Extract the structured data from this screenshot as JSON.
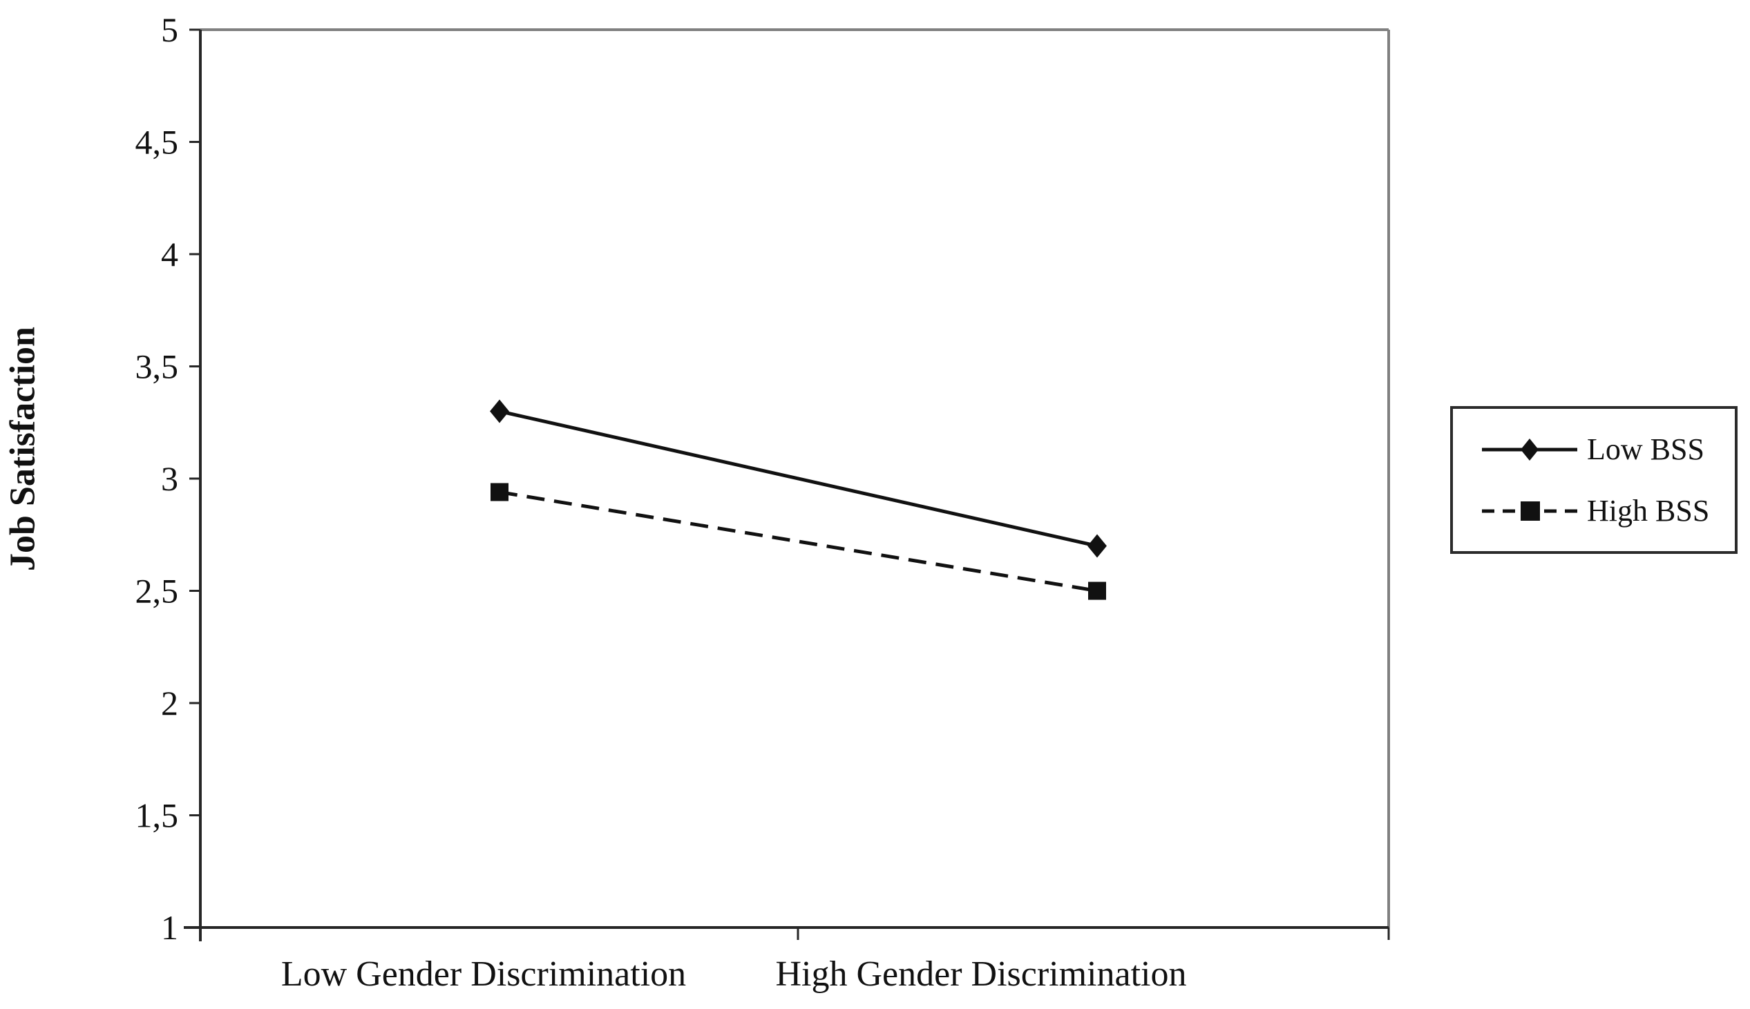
{
  "chart_data": {
    "type": "line",
    "title": "",
    "xlabel": "",
    "ylabel": "Job Satisfaction",
    "categories": [
      "Low Gender Discrimination",
      "High Gender Discrimination"
    ],
    "series": [
      {
        "name": "Low BSS",
        "values": [
          3.3,
          2.7
        ],
        "line_style": "solid",
        "marker": "diamond"
      },
      {
        "name": "High BSS",
        "values": [
          2.94,
          2.5
        ],
        "line_style": "dashed",
        "marker": "square"
      }
    ],
    "ylim": [
      1,
      5
    ],
    "y_tick_step": 0.5,
    "y_ticks": [
      {
        "value": 5,
        "label": "5"
      },
      {
        "value": 4.5,
        "label": "4,5"
      },
      {
        "value": 4,
        "label": "4"
      },
      {
        "value": 3.5,
        "label": "3,5"
      },
      {
        "value": 3,
        "label": "3"
      },
      {
        "value": 2.5,
        "label": "2,5"
      },
      {
        "value": 2,
        "label": "2"
      },
      {
        "value": 1.5,
        "label": "1,5"
      },
      {
        "value": 1,
        "label": "1"
      }
    ],
    "grid": false,
    "legend_position": "right",
    "colors": {
      "series_line": "#111111",
      "marker_fill": "#111111",
      "axis": "#262626",
      "plot_border": "#808080",
      "text": "#111111",
      "legend_border": "#2b2b2b",
      "background": "#ffffff"
    }
  }
}
